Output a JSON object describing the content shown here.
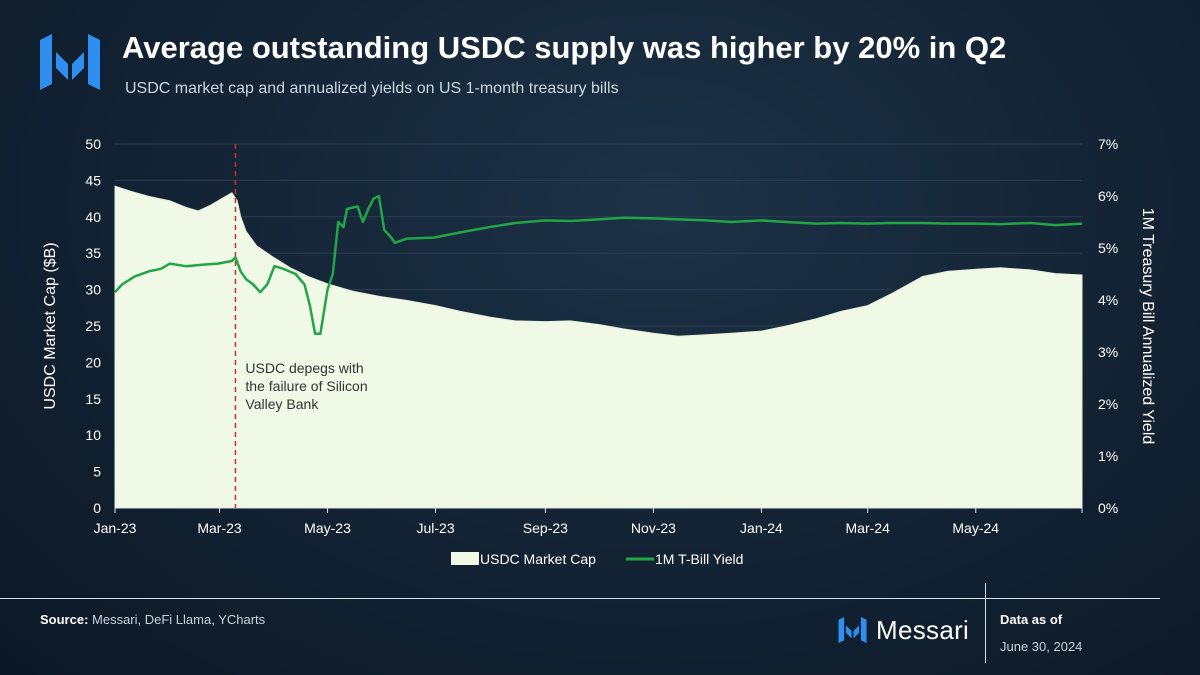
{
  "header": {
    "title": "Average outstanding USDC supply was higher by 20% in Q2",
    "subtitle": "USDC market cap and annualized yields on US 1-month treasury bills"
  },
  "footer": {
    "source_label": "Source:",
    "source_text": " Messari, DeFi Llama, YCharts",
    "brand": "Messari",
    "data_as_of_label": "Data as of",
    "data_as_of_date": "June 30, 2024"
  },
  "colors": {
    "area_fill": "#f0f8e6",
    "yield_line": "#22a546",
    "annotation_line": "#d42a2a",
    "brand_blue": "#2f8ff0"
  },
  "chart_data": {
    "type": "area",
    "x_range": [
      "2023-01-01",
      "2024-06-30"
    ],
    "x_ticks": [
      {
        "date": "2023-01-01",
        "label": "Jan-23"
      },
      {
        "date": "2023-03-01",
        "label": "Mar-23"
      },
      {
        "date": "2023-05-01",
        "label": "May-23"
      },
      {
        "date": "2023-07-01",
        "label": "Jul-23"
      },
      {
        "date": "2023-09-01",
        "label": "Sep-23"
      },
      {
        "date": "2023-11-01",
        "label": "Nov-23"
      },
      {
        "date": "2024-01-01",
        "label": "Jan-24"
      },
      {
        "date": "2024-03-01",
        "label": "Mar-24"
      },
      {
        "date": "2024-05-01",
        "label": "May-24"
      }
    ],
    "y_left": {
      "label": "USDC Market Cap ($B)",
      "range": [
        0,
        50
      ],
      "ticks": [
        0,
        5,
        10,
        15,
        20,
        25,
        30,
        35,
        40,
        45,
        50
      ]
    },
    "y_right": {
      "label": "1M Treasury Bill Annualized Yield",
      "range": [
        0,
        7
      ],
      "ticks": [
        "0%",
        "1%",
        "2%",
        "3%",
        "4%",
        "5%",
        "6%",
        "7%"
      ]
    },
    "grid": "horizontal",
    "legend": "bottom-center",
    "series": [
      {
        "name": "USDC Market Cap",
        "type": "area",
        "axis": "left",
        "points": [
          [
            "2023-01-01",
            44.2
          ],
          [
            "2023-01-10",
            43.5
          ],
          [
            "2023-01-20",
            42.8
          ],
          [
            "2023-02-01",
            42.2
          ],
          [
            "2023-02-10",
            41.3
          ],
          [
            "2023-02-17",
            40.8
          ],
          [
            "2023-02-24",
            41.6
          ],
          [
            "2023-03-03",
            42.6
          ],
          [
            "2023-03-08",
            43.3
          ],
          [
            "2023-03-11",
            42.2
          ],
          [
            "2023-03-13",
            40.0
          ],
          [
            "2023-03-16",
            38.0
          ],
          [
            "2023-03-22",
            36.0
          ],
          [
            "2023-03-31",
            34.5
          ],
          [
            "2023-04-10",
            33.0
          ],
          [
            "2023-04-20",
            31.8
          ],
          [
            "2023-05-01",
            30.8
          ],
          [
            "2023-05-15",
            29.8
          ],
          [
            "2023-06-01",
            29.0
          ],
          [
            "2023-06-15",
            28.5
          ],
          [
            "2023-07-01",
            27.8
          ],
          [
            "2023-07-15",
            27.0
          ],
          [
            "2023-08-01",
            26.2
          ],
          [
            "2023-08-15",
            25.7
          ],
          [
            "2023-09-01",
            25.6
          ],
          [
            "2023-09-15",
            25.7
          ],
          [
            "2023-10-01",
            25.2
          ],
          [
            "2023-10-15",
            24.6
          ],
          [
            "2023-11-01",
            24.0
          ],
          [
            "2023-11-15",
            23.6
          ],
          [
            "2023-12-01",
            23.8
          ],
          [
            "2023-12-15",
            24.0
          ],
          [
            "2024-01-01",
            24.3
          ],
          [
            "2024-01-15",
            25.0
          ],
          [
            "2024-02-01",
            26.0
          ],
          [
            "2024-02-15",
            27.0
          ],
          [
            "2024-03-01",
            27.8
          ],
          [
            "2024-03-15",
            29.5
          ],
          [
            "2024-04-01",
            31.8
          ],
          [
            "2024-04-15",
            32.5
          ],
          [
            "2024-05-01",
            32.8
          ],
          [
            "2024-05-15",
            33.0
          ],
          [
            "2024-06-01",
            32.7
          ],
          [
            "2024-06-15",
            32.2
          ],
          [
            "2024-06-30",
            32.0
          ]
        ]
      },
      {
        "name": "1M T-Bill Yield",
        "type": "line",
        "axis": "right",
        "points": [
          [
            "2023-01-01",
            4.15
          ],
          [
            "2023-01-05",
            4.3
          ],
          [
            "2023-01-12",
            4.45
          ],
          [
            "2023-01-20",
            4.55
          ],
          [
            "2023-01-27",
            4.6
          ],
          [
            "2023-02-01",
            4.7
          ],
          [
            "2023-02-10",
            4.65
          ],
          [
            "2023-02-20",
            4.68
          ],
          [
            "2023-02-28",
            4.7
          ],
          [
            "2023-03-08",
            4.75
          ],
          [
            "2023-03-10",
            4.82
          ],
          [
            "2023-03-13",
            4.55
          ],
          [
            "2023-03-16",
            4.4
          ],
          [
            "2023-03-20",
            4.3
          ],
          [
            "2023-03-24",
            4.15
          ],
          [
            "2023-03-28",
            4.3
          ],
          [
            "2023-04-01",
            4.65
          ],
          [
            "2023-04-06",
            4.6
          ],
          [
            "2023-04-13",
            4.5
          ],
          [
            "2023-04-18",
            4.3
          ],
          [
            "2023-04-21",
            3.9
          ],
          [
            "2023-04-24",
            3.35
          ],
          [
            "2023-04-27",
            3.35
          ],
          [
            "2023-05-01",
            4.2
          ],
          [
            "2023-05-04",
            4.5
          ],
          [
            "2023-05-07",
            5.5
          ],
          [
            "2023-05-10",
            5.4
          ],
          [
            "2023-05-12",
            5.75
          ],
          [
            "2023-05-18",
            5.8
          ],
          [
            "2023-05-21",
            5.5
          ],
          [
            "2023-05-24",
            5.75
          ],
          [
            "2023-05-27",
            5.95
          ],
          [
            "2023-05-30",
            6.0
          ],
          [
            "2023-06-02",
            5.35
          ],
          [
            "2023-06-06",
            5.2
          ],
          [
            "2023-06-08",
            5.1
          ],
          [
            "2023-06-15",
            5.18
          ],
          [
            "2023-06-30",
            5.2
          ],
          [
            "2023-07-15",
            5.3
          ],
          [
            "2023-07-31",
            5.4
          ],
          [
            "2023-08-15",
            5.48
          ],
          [
            "2023-09-01",
            5.53
          ],
          [
            "2023-09-15",
            5.52
          ],
          [
            "2023-10-01",
            5.55
          ],
          [
            "2023-10-15",
            5.58
          ],
          [
            "2023-11-01",
            5.57
          ],
          [
            "2023-11-15",
            5.55
          ],
          [
            "2023-12-01",
            5.53
          ],
          [
            "2023-12-15",
            5.5
          ],
          [
            "2024-01-01",
            5.53
          ],
          [
            "2024-01-15",
            5.5
          ],
          [
            "2024-02-01",
            5.47
          ],
          [
            "2024-02-15",
            5.48
          ],
          [
            "2024-03-01",
            5.47
          ],
          [
            "2024-03-15",
            5.48
          ],
          [
            "2024-04-01",
            5.48
          ],
          [
            "2024-04-15",
            5.47
          ],
          [
            "2024-05-01",
            5.47
          ],
          [
            "2024-05-15",
            5.46
          ],
          [
            "2024-06-01",
            5.48
          ],
          [
            "2024-06-15",
            5.44
          ],
          [
            "2024-06-30",
            5.47
          ]
        ]
      }
    ],
    "annotations": [
      {
        "type": "vline",
        "date": "2023-03-10",
        "text": "USDC depegs with the failure of Silicon Valley Bank"
      }
    ]
  }
}
